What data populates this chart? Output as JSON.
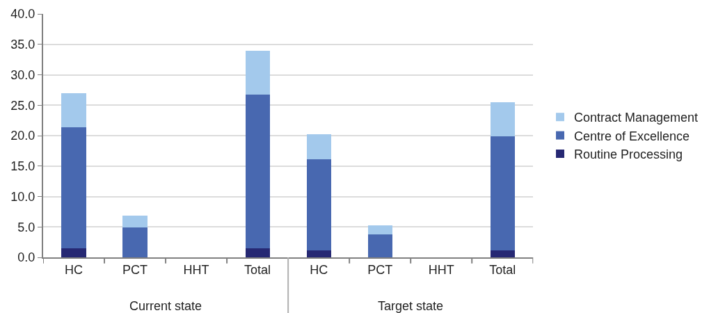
{
  "chart_data": {
    "type": "bar",
    "stacked": true,
    "categories": [
      "HC",
      "PCT",
      "HHT",
      "Total",
      "HC",
      "PCT",
      "HHT",
      "Total"
    ],
    "series": [
      {
        "name": "Routine Processing",
        "color": "#262873",
        "values": [
          1.5,
          0,
          0,
          1.5,
          1.1,
          0,
          0,
          1.1
        ]
      },
      {
        "name": "Centre of Excellence",
        "color": "#4868b0",
        "values": [
          19.9,
          4.9,
          0,
          25.2,
          15.0,
          3.8,
          0,
          18.8
        ]
      },
      {
        "name": "Contract Management",
        "color": "#a3c9ec",
        "values": [
          5.6,
          2.0,
          0,
          7.2,
          4.1,
          1.5,
          0,
          5.6
        ]
      }
    ],
    "ylim": [
      0,
      40
    ],
    "yticks": [
      {
        "value": 0,
        "label": "0.0"
      },
      {
        "value": 5,
        "label": "5.0"
      },
      {
        "value": 10,
        "label": "10.0"
      },
      {
        "value": 15,
        "label": "15.0"
      },
      {
        "value": 20,
        "label": "20.0"
      },
      {
        "value": 25,
        "label": "25.0"
      },
      {
        "value": 30,
        "label": "30.0"
      },
      {
        "value": 35,
        "label": "35.0"
      },
      {
        "value": 40,
        "label": "40.0"
      }
    ],
    "annotations": [
      "Current state",
      "Target state"
    ],
    "grid": "y",
    "legend": "right"
  }
}
